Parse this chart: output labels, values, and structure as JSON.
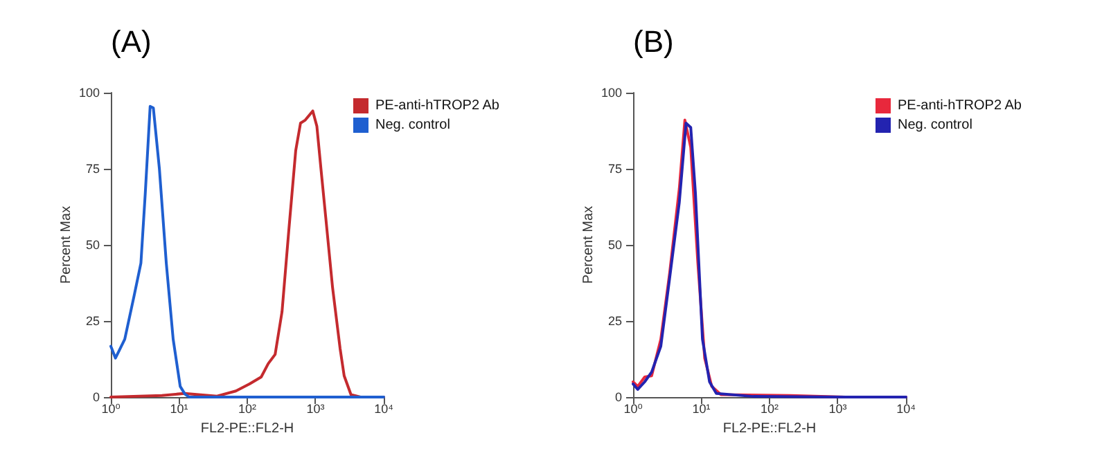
{
  "chart_data": [
    {
      "type": "line",
      "title": "(A)",
      "xlabel": "FL2-PE::FL2-H",
      "ylabel": "Percent Max",
      "log": "x",
      "grid": false,
      "legend": "top right",
      "marker": "none",
      "line_style": "solid",
      "xlim": [
        1,
        10000
      ],
      "xticks": [
        {
          "value": 1,
          "label": "10⁰"
        },
        {
          "value": 10,
          "label": "10¹"
        },
        {
          "value": 100,
          "label": "10²"
        },
        {
          "value": 1000,
          "label": "10³"
        },
        {
          "value": 10000,
          "label": "10⁴"
        }
      ],
      "ylim": [
        0,
        100
      ],
      "yticks": [
        0,
        25,
        50,
        75,
        100
      ],
      "series": [
        {
          "name": "PE-anti-hTROP2 Ab",
          "color": "#c42a2e",
          "x": [
            1,
            5.6,
            12,
            36,
            68,
            108,
            160,
            203,
            256,
            323,
            407,
            513,
            603,
            708,
            912,
            1047,
            1202,
            1413,
            1778,
            2291,
            2630,
            3311,
            4571,
            10000
          ],
          "values": [
            0,
            0.5,
            1.2,
            0.3,
            2,
            4.3,
            6.6,
            11,
            14,
            28,
            55,
            81,
            90,
            91,
            94,
            89,
            75,
            59,
            36,
            16,
            7,
            0.8,
            0,
            0
          ]
        },
        {
          "name": "Neg. control",
          "color": "#1f5fd0",
          "x": [
            1,
            1.17,
            1.6,
            2.18,
            2.76,
            3.2,
            3.77,
            4.2,
            5.15,
            6.5,
            8.2,
            10.4,
            12.2,
            14,
            10000
          ],
          "values": [
            16.7,
            12.8,
            19,
            33,
            44,
            67,
            95.5,
            95,
            75,
            44,
            19,
            3.5,
            1,
            0,
            0
          ]
        }
      ]
    },
    {
      "type": "line",
      "title": "(B)",
      "xlabel": "FL2-PE::FL2-H",
      "ylabel": "Percent Max",
      "log": "x",
      "grid": false,
      "legend": "top right",
      "marker": "none",
      "line_style": "solid",
      "xlim": [
        1,
        10000
      ],
      "xticks": [
        {
          "value": 1,
          "label": "10⁰"
        },
        {
          "value": 10,
          "label": "10¹"
        },
        {
          "value": 100,
          "label": "10²"
        },
        {
          "value": 1000,
          "label": "10³"
        },
        {
          "value": 10000,
          "label": "10⁴"
        }
      ],
      "ylim": [
        0,
        100
      ],
      "yticks": [
        0,
        25,
        50,
        75,
        100
      ],
      "series": [
        {
          "name": "PE-anti-hTROP2 Ab",
          "color": "#e8283c",
          "x": [
            1,
            1.17,
            1.48,
            1.87,
            2.55,
            3.43,
            4.76,
            5.74,
            7,
            8.9,
            11.2,
            14.2,
            19.4,
            200,
            1300,
            10000
          ],
          "values": [
            5,
            3.5,
            6.6,
            7,
            19,
            40.6,
            68.5,
            91,
            82,
            44,
            12.8,
            3.5,
            0.8,
            0.5,
            0,
            0
          ]
        },
        {
          "name": "Neg. control",
          "color": "#2323b0",
          "x": [
            1,
            1.17,
            1.48,
            1.87,
            2.55,
            3.43,
            4.76,
            5.97,
            7,
            8.2,
            10.4,
            13.2,
            16.6,
            58,
            1300,
            10000
          ],
          "values": [
            4.3,
            2.5,
            5,
            8.2,
            16.7,
            39,
            64,
            90,
            88.6,
            67,
            19,
            5,
            1.2,
            0.2,
            0,
            0
          ]
        }
      ]
    }
  ]
}
